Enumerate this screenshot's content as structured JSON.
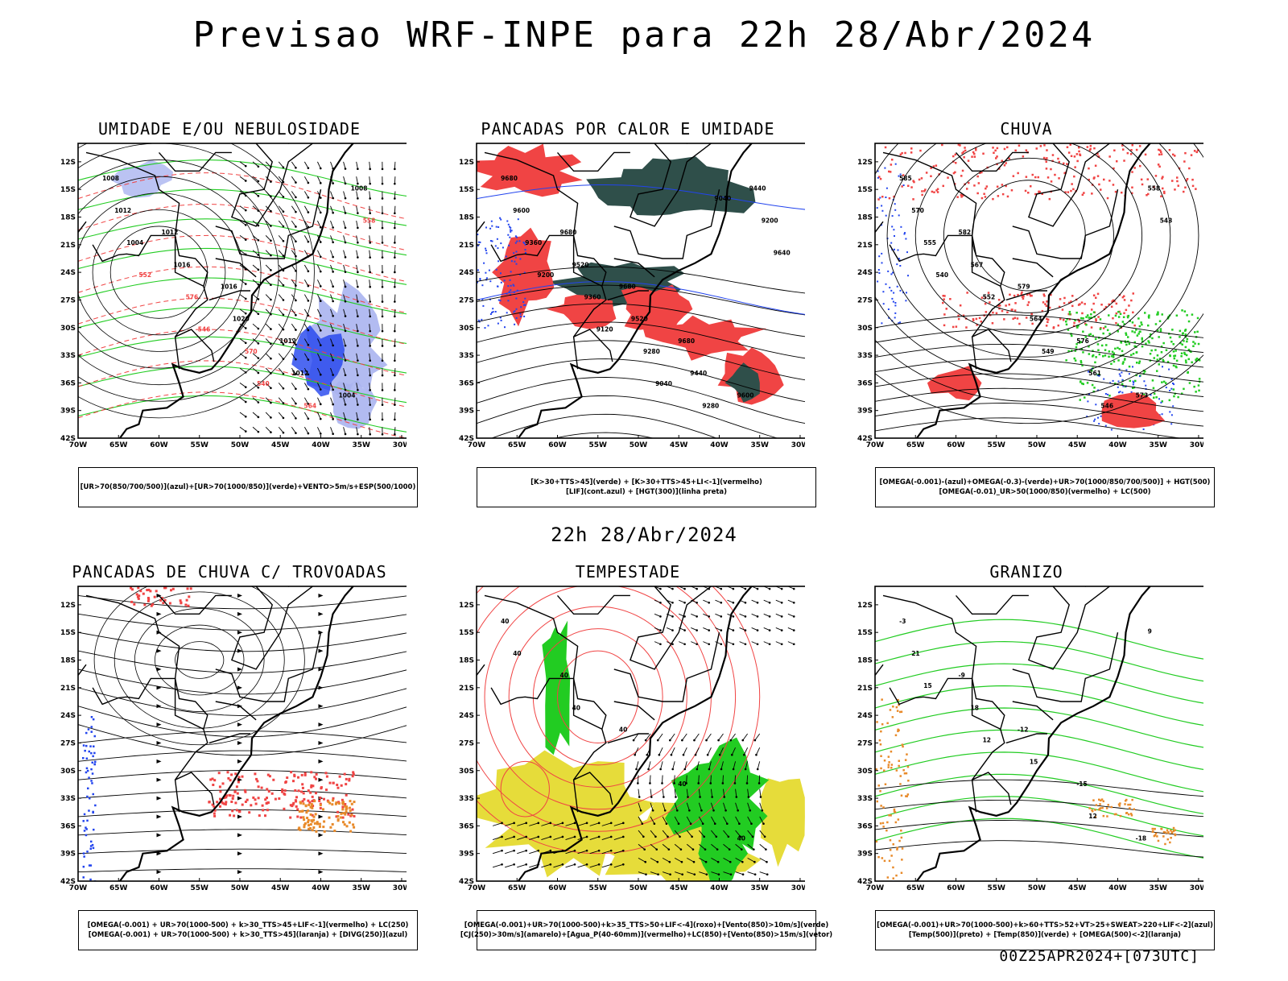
{
  "main_title": "Previsao WRF-INPE  para 22h 28/Abr/2024",
  "mid_title": "22h 28/Abr/2024",
  "footer": "00Z25APR2024+[073UTC]",
  "lat_labels": [
    "12S",
    "15S",
    "18S",
    "21S",
    "24S",
    "27S",
    "30S",
    "33S",
    "36S",
    "39S",
    "42S"
  ],
  "lon_labels": [
    "70W",
    "65W",
    "60W",
    "55W",
    "50W",
    "45W",
    "40W",
    "35W",
    "30W"
  ],
  "colors": {
    "red": "#f04444",
    "green": "#22cc22",
    "blue": "#2244ee",
    "lightblue": "#aab4f0",
    "darkteal": "#2f4f4a",
    "yellow": "#e6dc3a",
    "orange": "#e88a2a",
    "black": "#000000"
  },
  "panels": [
    {
      "title": "UMIDADE E/OU NEBULOSIDADE",
      "legend": [
        "[UR>70(850/700/500)](azul)+[UR>70(1000/850)](verde)+VENTO>5m/s+ESP(500/1000)"
      ],
      "contour_labels": [
        "1008",
        "1012",
        "1016",
        "1012",
        "1004",
        "1012",
        "1016",
        "1020",
        "1012",
        "1008",
        "1004",
        "576",
        "570",
        "564",
        "558",
        "552",
        "546",
        "540"
      ]
    },
    {
      "title": "PANCADAS POR CALOR E UMIDADE",
      "legend": [
        "[K>30+TTS>45](verde) + [K>30+TTS>45+LI<-1](vermelho)",
        "[LIF](cont.azul) + [HGT(300)](linha preta)"
      ],
      "contour_labels": [
        "9680",
        "9680",
        "9680",
        "9680",
        "9600",
        "9600",
        "9520",
        "9520",
        "9440",
        "9440",
        "9360",
        "9360",
        "9280",
        "9280",
        "9200",
        "9200",
        "9120",
        "9040",
        "9040",
        "9640"
      ]
    },
    {
      "title": "CHUVA",
      "legend": [
        "[OMEGA(-0.001)-(azul)+OMEGA(-0.3)-(verde)+UR>70(1000/850/700/500)] + HGT(500)",
        "[OMEGA(-0.01)_UR>50(1000/850)(vermelho) + LC(500)"
      ],
      "contour_labels": [
        "585",
        "582",
        "579",
        "576",
        "573",
        "570",
        "567",
        "564",
        "561",
        "558",
        "555",
        "552",
        "549",
        "546",
        "543",
        "540"
      ]
    },
    {
      "title": "PANCADAS DE CHUVA C/ TROVOADAS",
      "legend": [
        "[OMEGA(-0.001) + UR>70(1000-500) + k>30_TTS>45+LIF<-1](vermelho) + LC(250)",
        "[OMEGA(-0.001) + UR>70(1000-500) + k>30_TTS>45](laranja) + [DIVG(250)](azul)"
      ],
      "contour_labels": []
    },
    {
      "title": "TEMPESTADE",
      "legend": [
        "[OMEGA(-0.001)+UR>70(1000-500)+k>35_TTS>50+LIF<-4](roxo)+[Vento(850)>10m/s](verde)",
        "[CJ(250)>30m/s](amarelo)+[Agua_P(40-60mm)](vermelho)+LC(850)+[Vento(850)>15m/s](vetor)"
      ],
      "contour_labels": [
        "40",
        "40",
        "40",
        "40",
        "40",
        "40",
        "40"
      ]
    },
    {
      "title": "GRANIZO",
      "legend": [
        "[OMEGA(-0.001)+UR>70(1000-500)+k>60+TTS>52+VT>25+SWEAT>220+LIF<-2](azul)",
        "[Temp(500)](preto) + [Temp(850)](verde) + [OMEGA(500)<-2](laranja)"
      ],
      "contour_labels": [
        "-3",
        "-9",
        "-12",
        "-15",
        "-18",
        "21",
        "18",
        "15",
        "12",
        "9",
        "15",
        "12"
      ]
    }
  ]
}
